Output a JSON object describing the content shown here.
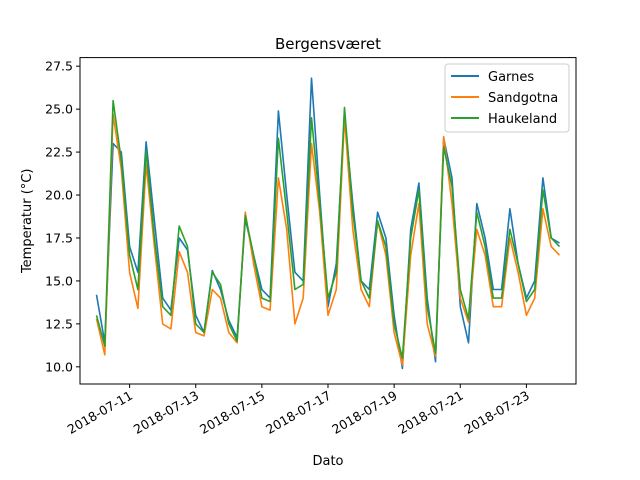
{
  "chart_data": {
    "type": "line",
    "title": "Bergensværet",
    "xlabel": "Dato",
    "ylabel": "Temperatur (°C)",
    "x_type": "date",
    "xlim": [
      "2018-07-09T12:00",
      "2018-07-24T12:00"
    ],
    "ylim": [
      9.0,
      28.0
    ],
    "x_ticks": [
      "2018-07-11",
      "2018-07-13",
      "2018-07-15",
      "2018-07-17",
      "2018-07-19",
      "2018-07-21",
      "2018-07-23"
    ],
    "y_ticks": [
      "10.0",
      "12.5",
      "15.0",
      "17.5",
      "20.0",
      "22.5",
      "25.0",
      "27.5"
    ],
    "grid": false,
    "legend_position": "top-right",
    "series": [
      {
        "name": "Garnes",
        "color": "#1f77b4",
        "points": [
          [
            "2018-07-10T00:00",
            14.2
          ],
          [
            "2018-07-10T06:00",
            11.4
          ],
          [
            "2018-07-10T12:00",
            23.0
          ],
          [
            "2018-07-10T18:00",
            22.5
          ],
          [
            "2018-07-11T00:00",
            17.0
          ],
          [
            "2018-07-11T06:00",
            15.5
          ],
          [
            "2018-07-11T12:00",
            23.1
          ],
          [
            "2018-07-11T18:00",
            18.5
          ],
          [
            "2018-07-12T00:00",
            14.0
          ],
          [
            "2018-07-12T06:00",
            13.3
          ],
          [
            "2018-07-12T12:00",
            17.5
          ],
          [
            "2018-07-12T18:00",
            16.8
          ],
          [
            "2018-07-13T00:00",
            13.0
          ],
          [
            "2018-07-13T06:00",
            12.0
          ],
          [
            "2018-07-13T12:00",
            15.6
          ],
          [
            "2018-07-13T18:00",
            14.5
          ],
          [
            "2018-07-14T00:00",
            12.7
          ],
          [
            "2018-07-14T06:00",
            11.7
          ],
          [
            "2018-07-14T12:00",
            18.6
          ],
          [
            "2018-07-14T18:00",
            16.5
          ],
          [
            "2018-07-15T00:00",
            14.5
          ],
          [
            "2018-07-15T06:00",
            14.0
          ],
          [
            "2018-07-15T12:00",
            24.9
          ],
          [
            "2018-07-15T18:00",
            20.0
          ],
          [
            "2018-07-16T00:00",
            15.5
          ],
          [
            "2018-07-16T06:00",
            15.0
          ],
          [
            "2018-07-16T12:00",
            26.8
          ],
          [
            "2018-07-16T18:00",
            20.0
          ],
          [
            "2018-07-17T00:00",
            13.5
          ],
          [
            "2018-07-17T06:00",
            16.0
          ],
          [
            "2018-07-17T12:00",
            24.6
          ],
          [
            "2018-07-17T18:00",
            19.5
          ],
          [
            "2018-07-18T00:00",
            15.0
          ],
          [
            "2018-07-18T06:00",
            14.5
          ],
          [
            "2018-07-18T12:00",
            19.0
          ],
          [
            "2018-07-18T18:00",
            17.5
          ],
          [
            "2018-07-19T00:00",
            13.0
          ],
          [
            "2018-07-19T06:00",
            9.9
          ],
          [
            "2018-07-19T12:00",
            18.0
          ],
          [
            "2018-07-19T18:00",
            20.7
          ],
          [
            "2018-07-20T00:00",
            14.0
          ],
          [
            "2018-07-20T06:00",
            10.3
          ],
          [
            "2018-07-20T12:00",
            23.3
          ],
          [
            "2018-07-20T18:00",
            21.0
          ],
          [
            "2018-07-21T00:00",
            13.5
          ],
          [
            "2018-07-21T06:00",
            11.4
          ],
          [
            "2018-07-21T12:00",
            19.5
          ],
          [
            "2018-07-21T18:00",
            17.5
          ],
          [
            "2018-07-22T00:00",
            14.5
          ],
          [
            "2018-07-22T06:00",
            14.5
          ],
          [
            "2018-07-22T12:00",
            19.2
          ],
          [
            "2018-07-22T18:00",
            16.0
          ],
          [
            "2018-07-23T00:00",
            14.0
          ],
          [
            "2018-07-23T06:00",
            15.0
          ],
          [
            "2018-07-23T12:00",
            21.0
          ],
          [
            "2018-07-23T18:00",
            17.5
          ],
          [
            "2018-07-24T00:00",
            17.2
          ]
        ]
      },
      {
        "name": "Sandgotna",
        "color": "#ff7f0e",
        "points": [
          [
            "2018-07-10T00:00",
            12.8
          ],
          [
            "2018-07-10T06:00",
            10.7
          ],
          [
            "2018-07-10T12:00",
            24.7
          ],
          [
            "2018-07-10T18:00",
            21.5
          ],
          [
            "2018-07-11T00:00",
            15.5
          ],
          [
            "2018-07-11T06:00",
            13.4
          ],
          [
            "2018-07-11T12:00",
            21.8
          ],
          [
            "2018-07-11T18:00",
            17.0
          ],
          [
            "2018-07-12T00:00",
            12.5
          ],
          [
            "2018-07-12T06:00",
            12.2
          ],
          [
            "2018-07-12T12:00",
            16.7
          ],
          [
            "2018-07-12T18:00",
            15.5
          ],
          [
            "2018-07-13T00:00",
            12.0
          ],
          [
            "2018-07-13T06:00",
            11.8
          ],
          [
            "2018-07-13T12:00",
            14.5
          ],
          [
            "2018-07-13T18:00",
            14.0
          ],
          [
            "2018-07-14T00:00",
            12.0
          ],
          [
            "2018-07-14T06:00",
            11.4
          ],
          [
            "2018-07-14T12:00",
            19.0
          ],
          [
            "2018-07-14T18:00",
            16.0
          ],
          [
            "2018-07-15T00:00",
            13.5
          ],
          [
            "2018-07-15T06:00",
            13.3
          ],
          [
            "2018-07-15T12:00",
            21.0
          ],
          [
            "2018-07-15T18:00",
            18.0
          ],
          [
            "2018-07-16T00:00",
            12.5
          ],
          [
            "2018-07-16T06:00",
            14.0
          ],
          [
            "2018-07-16T12:00",
            23.0
          ],
          [
            "2018-07-16T18:00",
            19.0
          ],
          [
            "2018-07-17T00:00",
            13.0
          ],
          [
            "2018-07-17T06:00",
            14.5
          ],
          [
            "2018-07-17T12:00",
            24.5
          ],
          [
            "2018-07-17T18:00",
            18.0
          ],
          [
            "2018-07-18T00:00",
            14.5
          ],
          [
            "2018-07-18T06:00",
            13.5
          ],
          [
            "2018-07-18T12:00",
            18.5
          ],
          [
            "2018-07-18T18:00",
            16.5
          ],
          [
            "2018-07-19T00:00",
            12.0
          ],
          [
            "2018-07-19T06:00",
            10.1
          ],
          [
            "2018-07-19T12:00",
            16.5
          ],
          [
            "2018-07-19T18:00",
            19.5
          ],
          [
            "2018-07-20T00:00",
            12.5
          ],
          [
            "2018-07-20T06:00",
            10.6
          ],
          [
            "2018-07-20T12:00",
            23.4
          ],
          [
            "2018-07-20T18:00",
            19.5
          ],
          [
            "2018-07-21T00:00",
            14.0
          ],
          [
            "2018-07-21T06:00",
            12.6
          ],
          [
            "2018-07-21T12:00",
            18.0
          ],
          [
            "2018-07-21T18:00",
            16.5
          ],
          [
            "2018-07-22T00:00",
            13.5
          ],
          [
            "2018-07-22T06:00",
            13.5
          ],
          [
            "2018-07-22T12:00",
            17.5
          ],
          [
            "2018-07-22T18:00",
            15.5
          ],
          [
            "2018-07-23T00:00",
            13.0
          ],
          [
            "2018-07-23T06:00",
            14.0
          ],
          [
            "2018-07-23T12:00",
            19.2
          ],
          [
            "2018-07-23T18:00",
            17.0
          ],
          [
            "2018-07-24T00:00",
            16.5
          ]
        ]
      },
      {
        "name": "Haukeland",
        "color": "#2ca02c",
        "points": [
          [
            "2018-07-10T00:00",
            13.0
          ],
          [
            "2018-07-10T06:00",
            11.2
          ],
          [
            "2018-07-10T12:00",
            25.5
          ],
          [
            "2018-07-10T18:00",
            22.0
          ],
          [
            "2018-07-11T00:00",
            16.5
          ],
          [
            "2018-07-11T06:00",
            14.5
          ],
          [
            "2018-07-11T12:00",
            22.6
          ],
          [
            "2018-07-11T18:00",
            17.5
          ],
          [
            "2018-07-12T00:00",
            13.5
          ],
          [
            "2018-07-12T06:00",
            13.0
          ],
          [
            "2018-07-12T12:00",
            18.2
          ],
          [
            "2018-07-12T18:00",
            17.0
          ],
          [
            "2018-07-13T00:00",
            12.5
          ],
          [
            "2018-07-13T06:00",
            12.0
          ],
          [
            "2018-07-13T12:00",
            15.5
          ],
          [
            "2018-07-13T18:00",
            14.8
          ],
          [
            "2018-07-14T00:00",
            12.5
          ],
          [
            "2018-07-14T06:00",
            11.5
          ],
          [
            "2018-07-14T12:00",
            18.8
          ],
          [
            "2018-07-14T18:00",
            16.5
          ],
          [
            "2018-07-15T00:00",
            14.0
          ],
          [
            "2018-07-15T06:00",
            13.8
          ],
          [
            "2018-07-15T12:00",
            23.3
          ],
          [
            "2018-07-15T18:00",
            19.0
          ],
          [
            "2018-07-16T00:00",
            14.5
          ],
          [
            "2018-07-16T06:00",
            14.8
          ],
          [
            "2018-07-16T12:00",
            24.5
          ],
          [
            "2018-07-16T18:00",
            19.5
          ],
          [
            "2018-07-17T00:00",
            14.0
          ],
          [
            "2018-07-17T06:00",
            15.5
          ],
          [
            "2018-07-17T12:00",
            25.1
          ],
          [
            "2018-07-17T18:00",
            19.0
          ],
          [
            "2018-07-18T00:00",
            15.0
          ],
          [
            "2018-07-18T06:00",
            14.0
          ],
          [
            "2018-07-18T12:00",
            18.5
          ],
          [
            "2018-07-18T18:00",
            17.0
          ],
          [
            "2018-07-19T00:00",
            12.5
          ],
          [
            "2018-07-19T06:00",
            10.5
          ],
          [
            "2018-07-19T12:00",
            17.5
          ],
          [
            "2018-07-19T18:00",
            20.3
          ],
          [
            "2018-07-20T00:00",
            13.5
          ],
          [
            "2018-07-20T06:00",
            10.8
          ],
          [
            "2018-07-20T12:00",
            22.8
          ],
          [
            "2018-07-20T18:00",
            20.5
          ],
          [
            "2018-07-21T00:00",
            14.5
          ],
          [
            "2018-07-21T06:00",
            12.8
          ],
          [
            "2018-07-21T12:00",
            19.0
          ],
          [
            "2018-07-21T18:00",
            17.0
          ],
          [
            "2018-07-22T00:00",
            14.0
          ],
          [
            "2018-07-22T06:00",
            14.0
          ],
          [
            "2018-07-22T12:00",
            18.0
          ],
          [
            "2018-07-22T18:00",
            16.0
          ],
          [
            "2018-07-23T00:00",
            13.8
          ],
          [
            "2018-07-23T06:00",
            14.5
          ],
          [
            "2018-07-23T12:00",
            20.3
          ],
          [
            "2018-07-23T18:00",
            17.5
          ],
          [
            "2018-07-24T00:00",
            17.0
          ]
        ]
      }
    ]
  }
}
